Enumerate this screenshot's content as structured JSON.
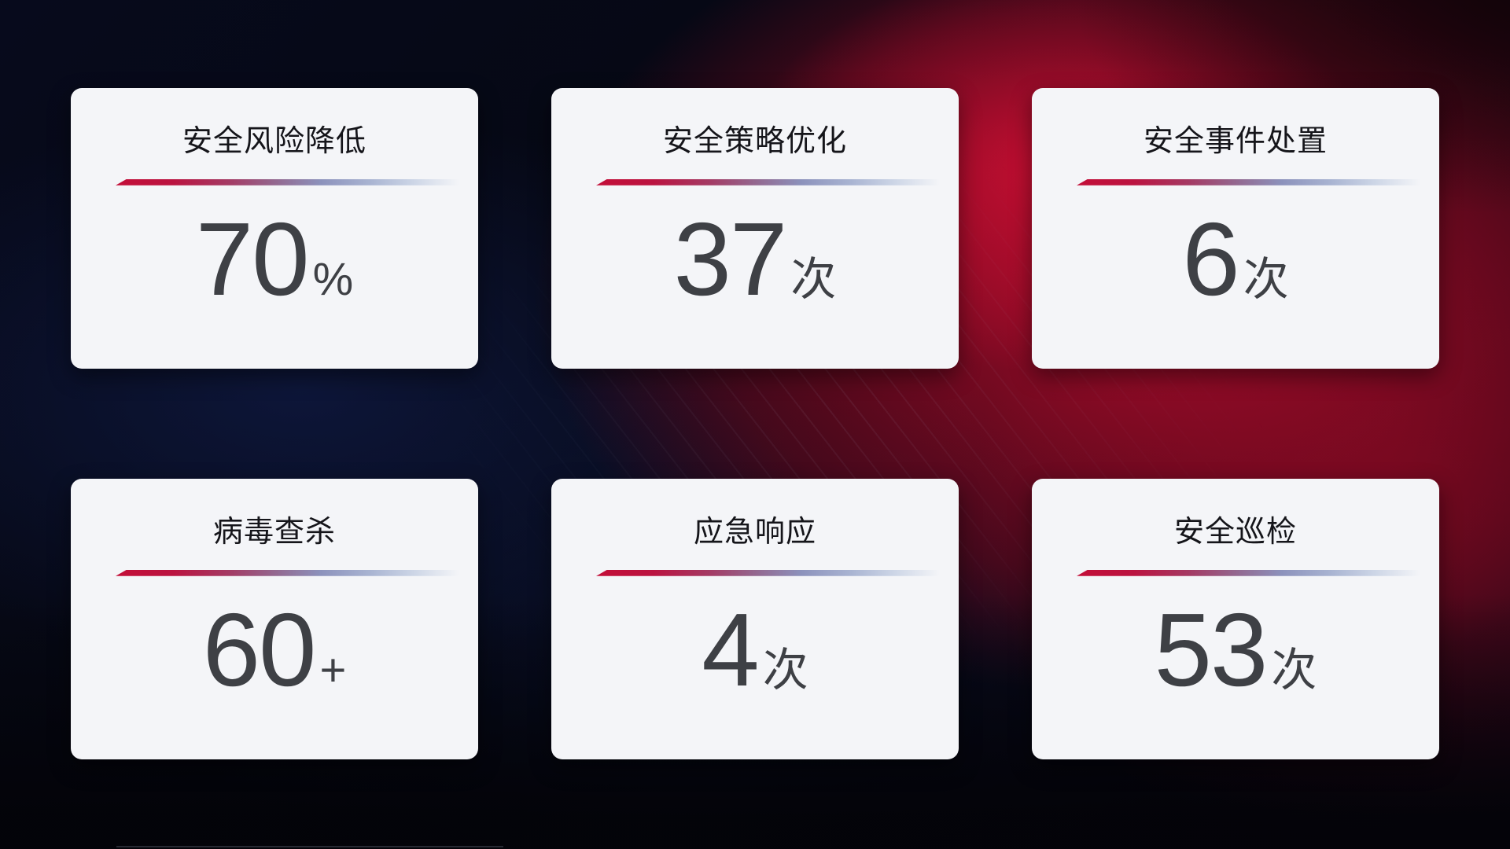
{
  "colors": {
    "card_background": "#f4f5f8",
    "title_color": "#15151a",
    "value_color": "#3e4045",
    "divider_red": "#c30e38",
    "divider_blue": "#8c92bc",
    "backdrop_navy": "#0a0f2a",
    "backdrop_red": "#b00c2c"
  },
  "cards": [
    {
      "title": "安全风险降低",
      "value": "70",
      "unit": "%"
    },
    {
      "title": "安全策略优化",
      "value": "37",
      "unit": "次"
    },
    {
      "title": "安全事件处置",
      "value": "6",
      "unit": "次"
    },
    {
      "title": "病毒查杀",
      "value": "60",
      "unit": "+"
    },
    {
      "title": "应急响应",
      "value": "4",
      "unit": "次"
    },
    {
      "title": "安全巡检",
      "value": "53",
      "unit": "次"
    }
  ]
}
